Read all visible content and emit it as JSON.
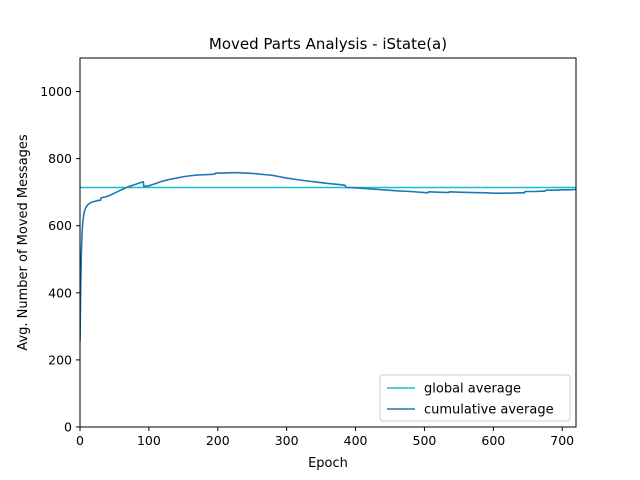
{
  "chart_data": {
    "type": "line",
    "title": "Moved Parts Analysis - iState(a)",
    "xlabel": "Epoch",
    "ylabel": "Avg. Number of Moved Messages",
    "xlim": [
      0,
      720
    ],
    "ylim": [
      0,
      1100
    ],
    "xticks": [
      0,
      100,
      200,
      300,
      400,
      500,
      600,
      700
    ],
    "yticks": [
      0,
      200,
      400,
      600,
      800,
      1000
    ],
    "grid": false,
    "legend_position": "lower-right",
    "series": [
      {
        "name": "global average",
        "color": "#17becf",
        "x": [
          0,
          720
        ],
        "y": [
          714,
          714
        ]
      },
      {
        "name": "cumulative average",
        "color": "#1f77b4",
        "x": [
          0,
          1,
          2,
          3,
          4,
          5,
          6,
          8,
          10,
          12,
          15,
          18,
          22,
          26,
          30,
          30.5,
          35,
          40,
          45,
          50,
          60,
          70,
          80,
          90,
          92,
          92.5,
          100,
          110,
          120,
          130,
          140,
          150,
          160,
          170,
          180,
          190,
          196,
          197,
          210,
          220,
          230,
          240,
          250,
          260,
          270,
          280,
          290,
          300,
          320,
          340,
          360,
          380,
          385,
          386,
          400,
          420,
          440,
          460,
          480,
          500,
          505,
          506,
          520,
          535,
          536,
          550,
          570,
          590,
          600,
          610,
          620,
          640,
          645,
          646,
          660,
          670,
          675,
          676,
          690,
          700,
          710,
          720
        ],
        "y": [
          255,
          420,
          520,
          580,
          610,
          627,
          640,
          652,
          659,
          664,
          668,
          671,
          673,
          675,
          676,
          683,
          685,
          688,
          692,
          697,
          707,
          716,
          723,
          730,
          731,
          717,
          719,
          726,
          733,
          738,
          742,
          746,
          749,
          751,
          752,
          753,
          754,
          757,
          757,
          758,
          758,
          757,
          756,
          754,
          752,
          750,
          746,
          742,
          736,
          731,
          726,
          722,
          720,
          714,
          713,
          710,
          707,
          704,
          702,
          699,
          698,
          701,
          700,
          699,
          701,
          700,
          699,
          698,
          697,
          697,
          697,
          698,
          698,
          702,
          702,
          703,
          703,
          706,
          706,
          707,
          707,
          708
        ]
      }
    ]
  }
}
